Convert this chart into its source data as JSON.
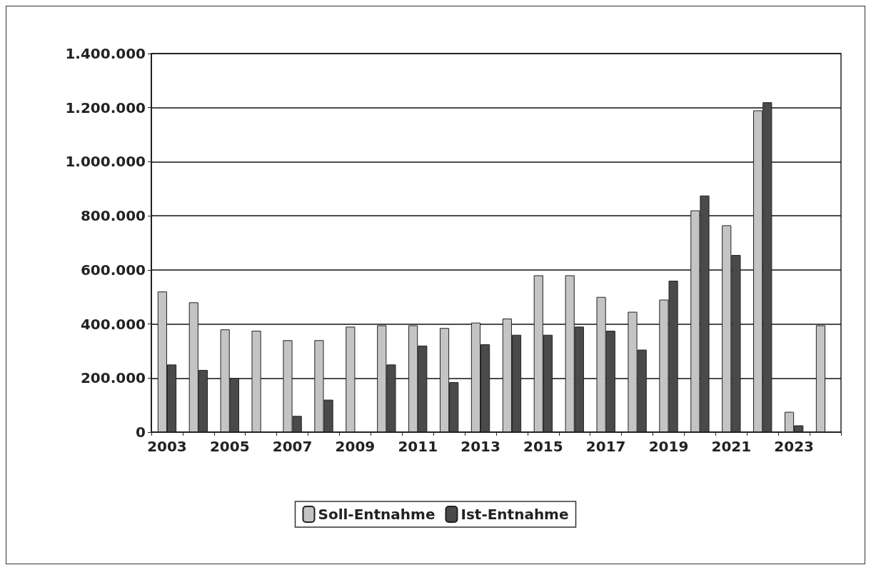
{
  "chart_data": {
    "type": "bar",
    "categories": [
      "2003",
      null,
      "2005",
      null,
      "2007",
      null,
      "2009",
      null,
      "2011",
      null,
      "2013",
      null,
      "2015",
      null,
      "2017",
      null,
      "2019",
      null,
      "2021",
      null,
      "2023",
      null
    ],
    "series": [
      {
        "name": "Soll-Entnahme",
        "color": "#c4c4c4",
        "values": [
          520000,
          480000,
          380000,
          375000,
          340000,
          340000,
          390000,
          395000,
          395000,
          385000,
          405000,
          420000,
          580000,
          580000,
          500000,
          445000,
          490000,
          820000,
          765000,
          1190000,
          75000,
          395000
        ]
      },
      {
        "name": "Ist-Entnahme",
        "color": "#4a4a4a",
        "values": [
          250000,
          230000,
          200000,
          null,
          60000,
          120000,
          null,
          250000,
          320000,
          185000,
          325000,
          360000,
          360000,
          390000,
          375000,
          305000,
          560000,
          875000,
          655000,
          1220000,
          25000,
          null
        ]
      }
    ],
    "ylim": [
      0,
      1400000
    ],
    "yticks": [
      {
        "value": 0,
        "label": "0"
      },
      {
        "value": 200000,
        "label": "200.000"
      },
      {
        "value": 400000,
        "label": "400.000"
      },
      {
        "value": 600000,
        "label": "600.000"
      },
      {
        "value": 800000,
        "label": "800.000"
      },
      {
        "value": 1000000,
        "label": "1.000.000"
      },
      {
        "value": 1200000,
        "label": "1.200.000"
      },
      {
        "value": 1400000,
        "label": "1.400.000"
      }
    ],
    "grid": "y",
    "legend": "bottom"
  }
}
